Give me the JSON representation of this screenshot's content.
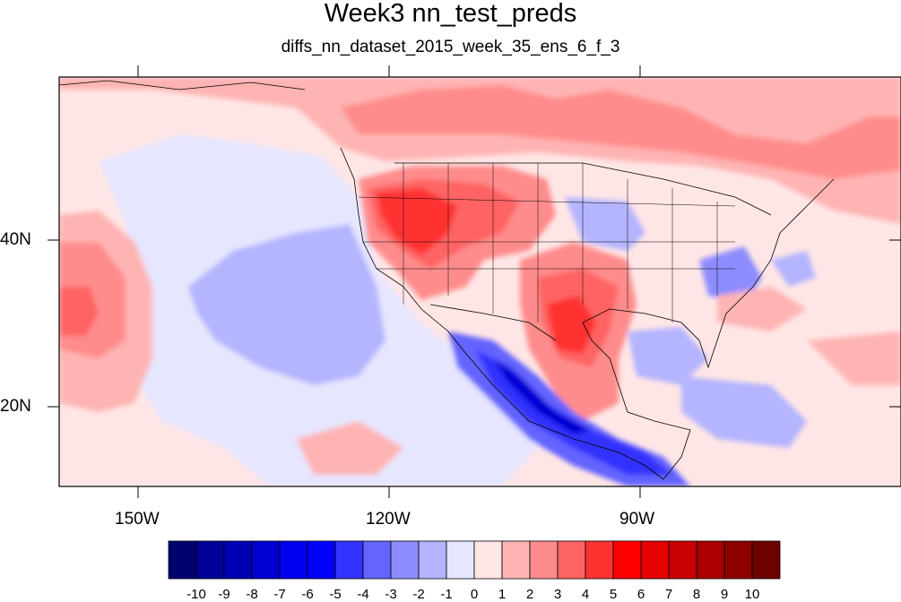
{
  "title": "Week3 nn_test_preds",
  "subtitle": "diffs_nn_dataset_2015_week_35_ens_6_f_3",
  "axes": {
    "x_ticks": [
      "150W",
      "120W",
      "90W"
    ],
    "y_ticks": [
      "40N",
      "20N"
    ]
  },
  "colorbar": {
    "labels": [
      "-10",
      "-9",
      "-8",
      "-7",
      "-6",
      "-5",
      "-4",
      "-3",
      "-2",
      "-1",
      "0",
      "1",
      "2",
      "3",
      "4",
      "5",
      "6",
      "7",
      "8",
      "9",
      "10"
    ],
    "colors": [
      "#00006e",
      "#000096",
      "#0000b4",
      "#0000d2",
      "#0000f0",
      "#0000ff",
      "#3232ff",
      "#6464ff",
      "#8c8cff",
      "#b4b4ff",
      "#e6e6ff",
      "#ffe6e6",
      "#ffb4b4",
      "#ff8c8c",
      "#ff6464",
      "#ff3232",
      "#ff0000",
      "#e60000",
      "#c80000",
      "#aa0000",
      "#8c0000",
      "#6e0000"
    ]
  },
  "chart_data": {
    "type": "heatmap",
    "title": "Week3 nn_test_preds",
    "subtitle": "diffs_nn_dataset_2015_week_35_ens_6_f_3",
    "lon_range": [
      -160,
      -62
    ],
    "lat_range": [
      10,
      59
    ],
    "x_ticks": [
      -150,
      -120,
      -90
    ],
    "y_ticks": [
      40,
      20
    ],
    "contour_levels": [
      -10,
      -9,
      -8,
      -7,
      -6,
      -5,
      -4,
      -3,
      -2,
      -1,
      0,
      1,
      2,
      3,
      4,
      5,
      6,
      7,
      8,
      9,
      10
    ]
  }
}
